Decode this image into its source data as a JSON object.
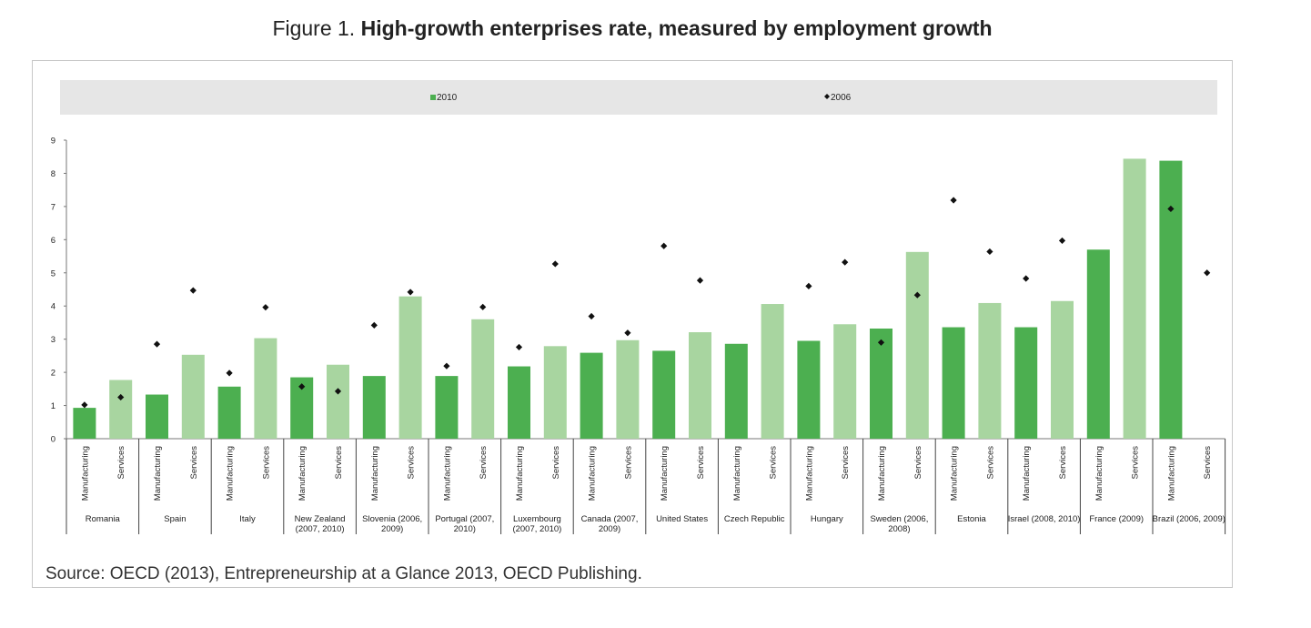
{
  "title": {
    "lead": "Figure 1.",
    "main": "High-growth enterprises rate, measured by employment growth"
  },
  "source": "Source: OECD (2013), Entrepreneurship at a Glance 2013, OECD Publishing.",
  "colors": {
    "manufacturing_2010": "#4caf50",
    "services_2010": "#a8d5a0",
    "marker_2006": "#111111",
    "legend_band": "#e6e6e6"
  },
  "chart_data": {
    "type": "bar",
    "title": "High-growth enterprises rate, measured by employment growth",
    "xlabel": "",
    "ylabel": "",
    "ylim": [
      0,
      9
    ],
    "yticks": [
      "0",
      "1",
      "2",
      "3",
      "4",
      "5",
      "6",
      "7",
      "8",
      "9"
    ],
    "grid": false,
    "legend_placement": "top",
    "legend": [
      {
        "label": "2010",
        "marker": "bar"
      },
      {
        "label": "2006",
        "marker": "diamond"
      }
    ],
    "sector_labels": [
      "Manufacturing",
      "Services"
    ],
    "countries": [
      {
        "name": [
          "Romania"
        ],
        "v2010": [
          0.93,
          1.77
        ],
        "v2006": [
          1.02,
          1.25
        ]
      },
      {
        "name": [
          "Spain"
        ],
        "v2010": [
          1.33,
          2.53
        ],
        "v2006": [
          2.85,
          4.47
        ]
      },
      {
        "name": [
          "Italy"
        ],
        "v2010": [
          1.57,
          3.03
        ],
        "v2006": [
          1.98,
          3.96
        ]
      },
      {
        "name": [
          "New Zealand",
          "(2007, 2010)"
        ],
        "v2010": [
          1.85,
          2.23
        ],
        "v2006": [
          1.57,
          1.43
        ]
      },
      {
        "name": [
          "Slovenia (2006,",
          "2009)"
        ],
        "v2010": [
          1.89,
          4.29
        ],
        "v2006": [
          3.42,
          4.42
        ]
      },
      {
        "name": [
          "Portugal (2007,",
          "2010)"
        ],
        "v2010": [
          1.89,
          3.6
        ],
        "v2006": [
          2.19,
          3.97
        ]
      },
      {
        "name": [
          "Luxembourg",
          "(2007, 2010)"
        ],
        "v2010": [
          2.18,
          2.79
        ],
        "v2006": [
          2.76,
          5.27
        ]
      },
      {
        "name": [
          "Canada (2007,",
          "2009)"
        ],
        "v2010": [
          2.59,
          2.97
        ],
        "v2006": [
          3.69,
          3.19
        ]
      },
      {
        "name": [
          "United States"
        ],
        "v2010": [
          2.65,
          3.21
        ],
        "v2006": [
          5.81,
          4.77
        ]
      },
      {
        "name": [
          "Czech Republic"
        ],
        "v2010": [
          2.86,
          4.06
        ],
        "v2006": [
          null,
          null
        ]
      },
      {
        "name": [
          "Hungary"
        ],
        "v2010": [
          2.95,
          3.45
        ],
        "v2006": [
          4.6,
          5.32
        ]
      },
      {
        "name": [
          "Sweden (2006,",
          "2008)"
        ],
        "v2010": [
          3.32,
          5.63
        ],
        "v2006": [
          2.9,
          4.33
        ]
      },
      {
        "name": [
          "Estonia"
        ],
        "v2010": [
          3.36,
          4.09
        ],
        "v2006": [
          7.19,
          5.64
        ]
      },
      {
        "name": [
          "Israel (2008, 2010)"
        ],
        "v2010": [
          3.36,
          4.15
        ],
        "v2006": [
          4.83,
          5.97
        ]
      },
      {
        "name": [
          "France (2009)"
        ],
        "v2010": [
          5.7,
          8.44
        ],
        "v2006": [
          null,
          null
        ]
      },
      {
        "name": [
          "Brazil (2006, 2009)"
        ],
        "v2010": [
          8.38,
          null
        ],
        "v2006": [
          6.93,
          5.0
        ]
      }
    ]
  }
}
